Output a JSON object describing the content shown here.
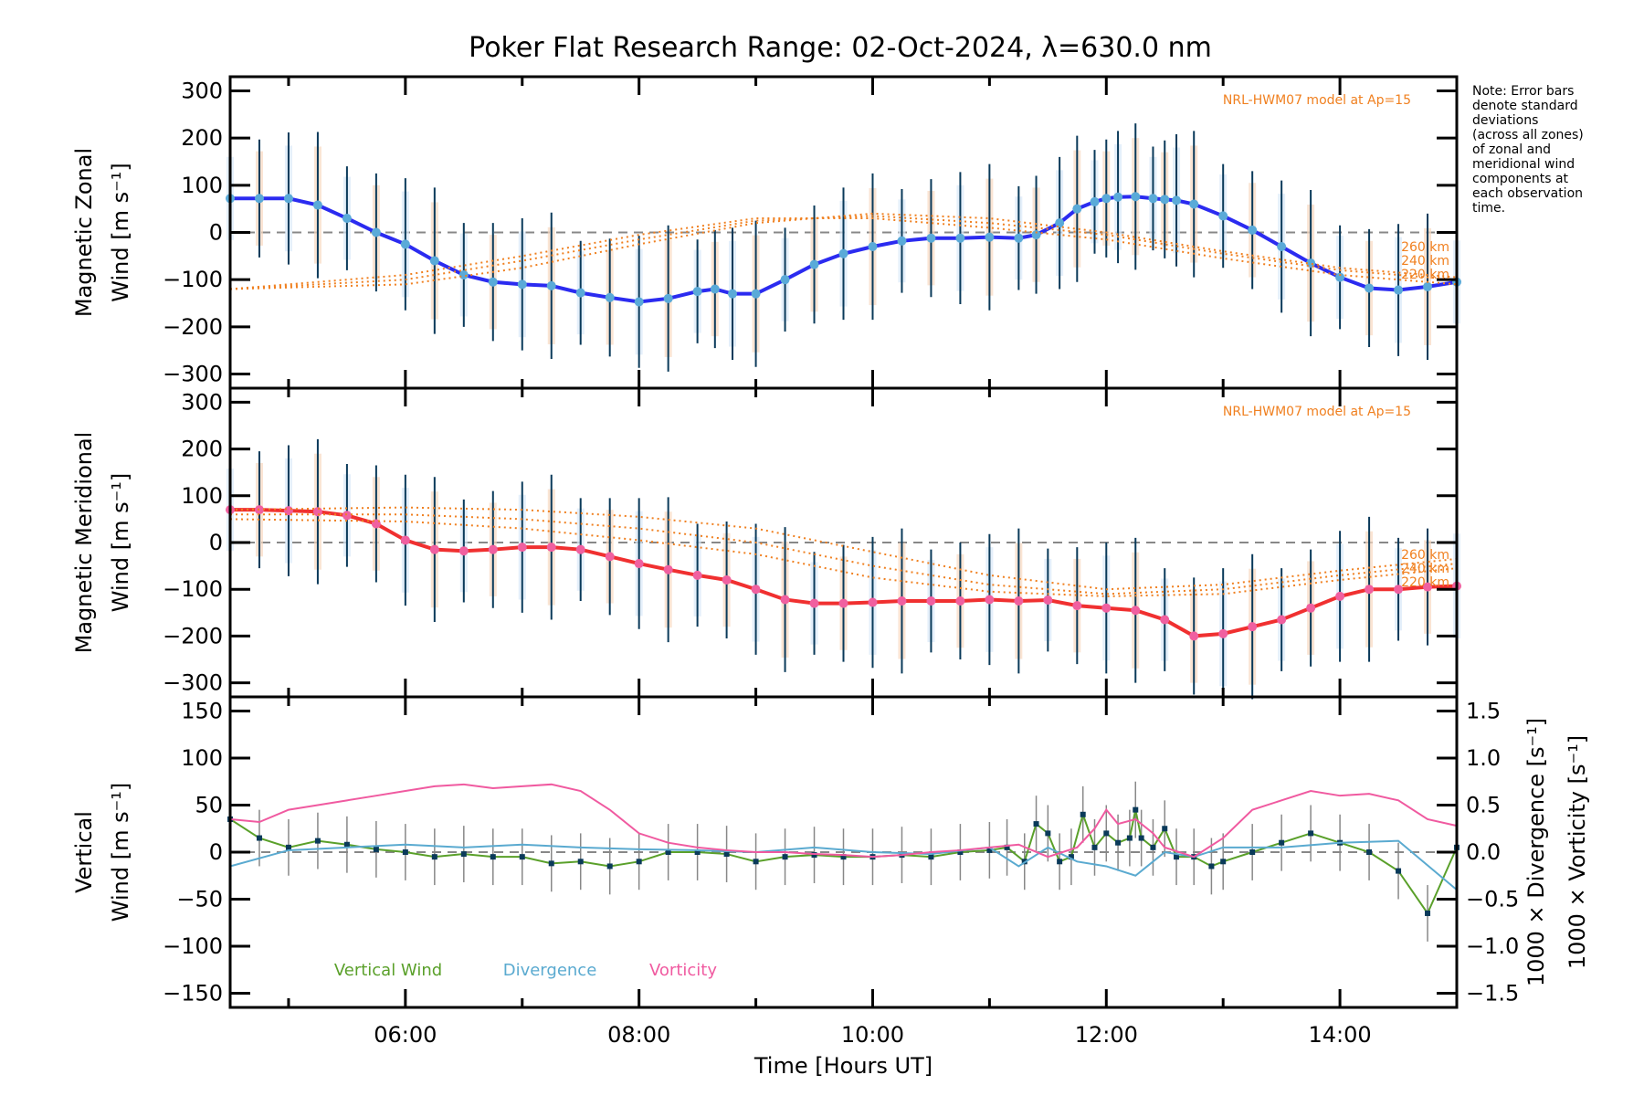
{
  "chart_data": [
    {
      "type": "line",
      "panel": "zonal",
      "title": "Poker Flat Research Range: 02-Oct-2024, λ=630.0 nm",
      "ylabel_line1": "Magnetic Zonal",
      "ylabel_line2": "Wind [m s⁻¹]",
      "ylim": [
        -330,
        330
      ],
      "yticks": [
        300,
        200,
        100,
        0,
        -100,
        -200,
        -300
      ],
      "xlim": [
        4.5,
        15.0
      ],
      "model_label": "NRL-HWM07 model at Ap=15",
      "model_altitudes": [
        "260 km",
        "240 km",
        "220 km"
      ],
      "series": [
        {
          "name": "Magnetic Zonal Wind",
          "color": "#2b2bf0",
          "x": [
            4.5,
            4.75,
            5.0,
            5.25,
            5.5,
            5.75,
            6.0,
            6.25,
            6.5,
            6.75,
            7.0,
            7.25,
            7.5,
            7.75,
            8.0,
            8.25,
            8.5,
            8.65,
            8.8,
            9.0,
            9.25,
            9.5,
            9.75,
            10.0,
            10.25,
            10.5,
            10.75,
            11.0,
            11.25,
            11.4,
            11.6,
            11.75,
            11.9,
            12.0,
            12.1,
            12.25,
            12.4,
            12.5,
            12.6,
            12.75,
            13.0,
            13.25,
            13.5,
            13.75,
            14.0,
            14.25,
            14.5,
            14.75,
            15.0
          ],
          "values": [
            72,
            72,
            72,
            58,
            30,
            0,
            -25,
            -60,
            -90,
            -105,
            -110,
            -113,
            -128,
            -138,
            -147,
            -140,
            -125,
            -120,
            -130,
            -130,
            -100,
            -68,
            -45,
            -30,
            -18,
            -12,
            -12,
            -10,
            -12,
            -5,
            20,
            50,
            65,
            72,
            75,
            76,
            72,
            70,
            68,
            60,
            35,
            5,
            -30,
            -65,
            -95,
            -118,
            -122,
            -115,
            -105
          ]
        },
        {
          "name": "NRL-HWM07 260 km",
          "color": "#f08020",
          "style": "dotted",
          "x": [
            4.5,
            6,
            7,
            8,
            9,
            10,
            11,
            12,
            13,
            14,
            15
          ],
          "values": [
            -120,
            -110,
            -75,
            -25,
            20,
            40,
            30,
            0,
            -40,
            -75,
            -95
          ]
        },
        {
          "name": "NRL-HWM07 240 km",
          "color": "#f08020",
          "style": "dotted",
          "x": [
            4.5,
            6,
            7,
            8,
            9,
            10,
            11,
            12,
            13,
            14,
            15
          ],
          "values": [
            -120,
            -100,
            -60,
            -15,
            25,
            35,
            20,
            -5,
            -45,
            -80,
            -100
          ]
        },
        {
          "name": "NRL-HWM07 220 km",
          "color": "#f08020",
          "style": "dotted",
          "x": [
            4.5,
            6,
            7,
            8,
            9,
            10,
            11,
            12,
            13,
            14,
            15
          ],
          "values": [
            -120,
            -90,
            -50,
            -5,
            30,
            30,
            10,
            -15,
            -55,
            -90,
            -110
          ]
        }
      ]
    },
    {
      "type": "line",
      "panel": "meridional",
      "ylabel_line1": "Magnetic Meridional",
      "ylabel_line2": "Wind [m s⁻¹]",
      "ylim": [
        -330,
        330
      ],
      "yticks": [
        300,
        200,
        100,
        0,
        -100,
        -200,
        -300
      ],
      "xlim": [
        4.5,
        15.0
      ],
      "model_label": "NRL-HWM07 model at Ap=15",
      "model_altitudes": [
        "260 km",
        "240 km",
        "220 km"
      ],
      "series": [
        {
          "name": "Magnetic Meridional Wind",
          "color": "#f03030",
          "x": [
            4.5,
            4.75,
            5.0,
            5.25,
            5.5,
            5.75,
            6.0,
            6.25,
            6.5,
            6.75,
            7.0,
            7.25,
            7.5,
            7.75,
            8.0,
            8.25,
            8.5,
            8.75,
            9.0,
            9.25,
            9.5,
            9.75,
            10.0,
            10.25,
            10.5,
            10.75,
            11.0,
            11.25,
            11.5,
            11.75,
            12.0,
            12.25,
            12.5,
            12.75,
            13.0,
            13.25,
            13.5,
            13.75,
            14.0,
            14.25,
            14.5,
            14.75,
            15.0
          ],
          "values": [
            70,
            70,
            68,
            66,
            58,
            40,
            5,
            -15,
            -18,
            -15,
            -10,
            -10,
            -15,
            -30,
            -45,
            -58,
            -70,
            -80,
            -100,
            -122,
            -130,
            -130,
            -128,
            -125,
            -125,
            -125,
            -122,
            -125,
            -123,
            -135,
            -140,
            -145,
            -165,
            -200,
            -195,
            -180,
            -165,
            -140,
            -115,
            -100,
            -100,
            -95,
            -93
          ]
        },
        {
          "name": "NRL-HWM07 260 km",
          "color": "#f08020",
          "style": "dotted",
          "x": [
            4.5,
            6,
            7,
            8,
            9,
            10,
            11,
            12,
            13,
            14,
            15
          ],
          "values": [
            70,
            75,
            70,
            55,
            30,
            -20,
            -70,
            -100,
            -90,
            -60,
            -35
          ]
        },
        {
          "name": "NRL-HWM07 240 km",
          "color": "#f08020",
          "style": "dotted",
          "x": [
            4.5,
            6,
            7,
            8,
            9,
            10,
            11,
            12,
            13,
            14,
            15
          ],
          "values": [
            60,
            60,
            50,
            30,
            0,
            -50,
            -90,
            -110,
            -100,
            -70,
            -45
          ]
        },
        {
          "name": "NRL-HWM07 220 km",
          "color": "#f08020",
          "style": "dotted",
          "x": [
            4.5,
            6,
            7,
            8,
            9,
            10,
            11,
            12,
            13,
            14,
            15
          ],
          "values": [
            50,
            45,
            30,
            5,
            -25,
            -75,
            -105,
            -115,
            -110,
            -80,
            -55
          ]
        }
      ]
    },
    {
      "type": "line",
      "panel": "vertical",
      "ylabel_line1": "Vertical",
      "ylabel_line2": "Wind [m s⁻¹]",
      "ylabel_right1": "1000 × Divergence [s⁻¹]",
      "ylabel_right2": "1000 × Vorticity [s⁻¹]",
      "ylim": [
        -165,
        165
      ],
      "yticks": [
        150,
        100,
        50,
        0,
        -50,
        -100,
        -150
      ],
      "y2lim": [
        -1.65,
        1.65
      ],
      "y2ticks": [
        "1.5",
        "1.0",
        "0.5",
        "0.0",
        "−0.5",
        "−1.0",
        "−1.5"
      ],
      "y2values": [
        1.5,
        1.0,
        0.5,
        0.0,
        -0.5,
        -1.0,
        -1.5
      ],
      "xlim": [
        4.5,
        15.0
      ],
      "xticks": [
        "06:00",
        "08:00",
        "10:00",
        "12:00",
        "14:00"
      ],
      "xtick_values": [
        6,
        8,
        10,
        12,
        14
      ],
      "xlabel": "Time [Hours UT]",
      "legend": [
        "Vertical Wind",
        "Divergence",
        "Vorticity"
      ],
      "series": [
        {
          "name": "Vertical Wind",
          "color": "#5aa02a",
          "axis": "left",
          "x": [
            4.5,
            4.75,
            5.0,
            5.25,
            5.5,
            5.75,
            6.0,
            6.25,
            6.5,
            6.75,
            7.0,
            7.25,
            7.5,
            7.75,
            8.0,
            8.25,
            8.5,
            8.75,
            9.0,
            9.25,
            9.5,
            9.75,
            10.0,
            10.25,
            10.5,
            10.75,
            11.0,
            11.15,
            11.3,
            11.4,
            11.5,
            11.6,
            11.7,
            11.8,
            11.9,
            12.0,
            12.1,
            12.2,
            12.25,
            12.3,
            12.4,
            12.5,
            12.6,
            12.75,
            12.9,
            13.0,
            13.25,
            13.5,
            13.75,
            14.0,
            14.25,
            14.5,
            14.75,
            15.0
          ],
          "values": [
            35,
            15,
            5,
            12,
            8,
            3,
            0,
            -5,
            -2,
            -5,
            -5,
            -12,
            -10,
            -15,
            -10,
            0,
            0,
            -2,
            -10,
            -5,
            -3,
            -5,
            -5,
            -3,
            -5,
            0,
            2,
            5,
            -10,
            30,
            20,
            -10,
            -5,
            40,
            5,
            20,
            10,
            15,
            45,
            15,
            5,
            25,
            -5,
            -5,
            -15,
            -10,
            0,
            10,
            20,
            10,
            0,
            -20,
            -65,
            5
          ]
        },
        {
          "name": "Divergence",
          "color": "#5aaad0",
          "axis": "right",
          "x": [
            4.5,
            5.0,
            5.5,
            6.0,
            6.5,
            7.0,
            7.5,
            8.0,
            8.5,
            9.0,
            9.5,
            10.0,
            10.5,
            11.0,
            11.25,
            11.5,
            11.75,
            12.0,
            12.25,
            12.5,
            12.75,
            13.0,
            13.5,
            14.0,
            14.5,
            15.0
          ],
          "values": [
            -0.15,
            0.02,
            0.05,
            0.08,
            0.05,
            0.08,
            0.05,
            0.03,
            0.02,
            0.0,
            0.05,
            0.0,
            -0.02,
            0.05,
            -0.15,
            0.05,
            -0.1,
            -0.15,
            -0.25,
            0.0,
            -0.05,
            0.05,
            0.05,
            0.1,
            0.12,
            -0.4
          ]
        },
        {
          "name": "Vorticity",
          "color": "#f05aa0",
          "axis": "right",
          "x": [
            4.5,
            4.75,
            5.0,
            5.25,
            5.5,
            5.75,
            6.0,
            6.25,
            6.5,
            6.75,
            7.0,
            7.25,
            7.5,
            7.75,
            8.0,
            8.25,
            8.5,
            8.75,
            9.0,
            9.25,
            9.5,
            9.75,
            10.0,
            10.25,
            10.5,
            10.75,
            11.0,
            11.25,
            11.5,
            11.75,
            11.9,
            12.0,
            12.1,
            12.25,
            12.4,
            12.5,
            12.75,
            13.0,
            13.25,
            13.5,
            13.75,
            14.0,
            14.25,
            14.5,
            14.75,
            15.0
          ],
          "values": [
            0.35,
            0.32,
            0.45,
            0.5,
            0.55,
            0.6,
            0.65,
            0.7,
            0.72,
            0.68,
            0.7,
            0.72,
            0.65,
            0.45,
            0.2,
            0.1,
            0.05,
            0.02,
            0.0,
            0.0,
            -0.02,
            -0.03,
            -0.05,
            -0.03,
            0.0,
            0.02,
            0.05,
            0.08,
            -0.05,
            0.05,
            0.25,
            0.45,
            0.3,
            0.35,
            0.2,
            0.05,
            -0.05,
            0.15,
            0.45,
            0.55,
            0.65,
            0.6,
            0.62,
            0.55,
            0.35,
            0.28
          ]
        }
      ]
    }
  ],
  "note": [
    "Note: Error bars",
    "denote standard",
    "deviations",
    "(across all zones)",
    "of zonal and",
    "meridional wind",
    "components at",
    "each observation",
    "time."
  ]
}
